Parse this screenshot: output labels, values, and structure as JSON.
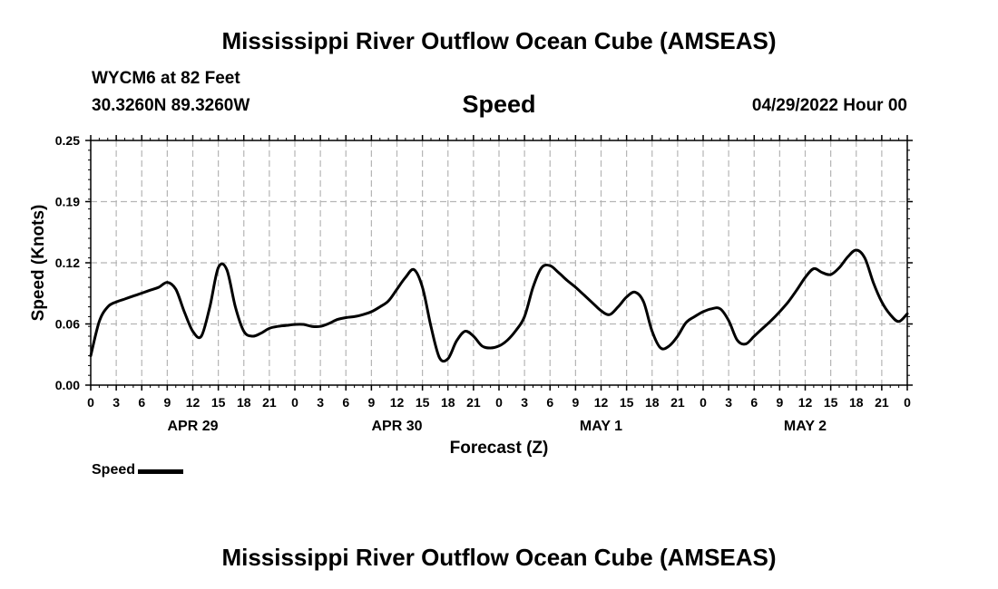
{
  "header": {
    "title": "Mississippi River Outflow Ocean Cube (AMSEAS)",
    "station": "WYCM6 at 82 Feet",
    "coords": "30.3260N  89.3260W",
    "plot_title": "Speed",
    "run_time": "04/29/2022 Hour 00"
  },
  "footer": {
    "title": "Mississippi River Outflow Ocean Cube (AMSEAS)"
  },
  "legend": {
    "label": "Speed",
    "color": "#000000"
  },
  "chart_data": {
    "type": "line",
    "title": "Speed",
    "xlabel": "Forecast (Z)",
    "ylabel": "Speed (Knots)",
    "ylim": [
      0,
      0.25
    ],
    "xlim": [
      0,
      96
    ],
    "yticks": [
      "0.00",
      "0.06",
      "0.12",
      "0.19",
      "0.25"
    ],
    "ytick_values": [
      0,
      0.0625,
      0.125,
      0.1875,
      0.25
    ],
    "xtick_labels": [
      "0",
      "3",
      "6",
      "9",
      "12",
      "15",
      "18",
      "21",
      "0",
      "3",
      "6",
      "9",
      "12",
      "15",
      "18",
      "21",
      "0",
      "3",
      "6",
      "9",
      "12",
      "15",
      "18",
      "21",
      "0",
      "3",
      "6",
      "9",
      "12",
      "15",
      "18",
      "21",
      "0"
    ],
    "day_labels": [
      {
        "label": "APR 29",
        "hour": 12
      },
      {
        "label": "APR 30",
        "hour": 36
      },
      {
        "label": "MAY 1",
        "hour": 60
      },
      {
        "label": "MAY 2",
        "hour": 84
      }
    ],
    "grid": true,
    "series": [
      {
        "name": "Speed",
        "color": "#000000",
        "x": [
          0,
          1,
          2,
          3,
          4,
          5,
          6,
          7,
          8,
          9,
          10,
          11,
          12,
          13,
          14,
          15,
          16,
          17,
          18,
          19,
          20,
          21,
          22,
          23,
          24,
          25,
          26,
          27,
          28,
          29,
          30,
          31,
          32,
          33,
          34,
          35,
          36,
          37,
          38,
          39,
          40,
          41,
          42,
          43,
          44,
          45,
          46,
          47,
          48,
          49,
          50,
          51,
          52,
          53,
          54,
          55,
          56,
          57,
          58,
          59,
          60,
          61,
          62,
          63,
          64,
          65,
          66,
          67,
          68,
          69,
          70,
          71,
          72,
          73,
          74,
          75,
          76,
          77,
          78,
          79,
          80,
          81,
          82,
          83,
          84,
          85,
          86,
          87,
          88,
          89,
          90,
          91,
          92,
          93,
          94,
          95,
          96
        ],
        "values": [
          0.03,
          0.065,
          0.08,
          0.085,
          0.088,
          0.091,
          0.094,
          0.097,
          0.1,
          0.105,
          0.098,
          0.075,
          0.055,
          0.05,
          0.08,
          0.12,
          0.118,
          0.08,
          0.055,
          0.05,
          0.053,
          0.058,
          0.06,
          0.061,
          0.062,
          0.062,
          0.06,
          0.06,
          0.063,
          0.067,
          0.069,
          0.07,
          0.072,
          0.075,
          0.08,
          0.086,
          0.098,
          0.11,
          0.118,
          0.1,
          0.06,
          0.028,
          0.027,
          0.045,
          0.055,
          0.05,
          0.04,
          0.038,
          0.04,
          0.046,
          0.056,
          0.07,
          0.1,
          0.12,
          0.122,
          0.115,
          0.107,
          0.1,
          0.092,
          0.084,
          0.076,
          0.072,
          0.08,
          0.09,
          0.095,
          0.085,
          0.055,
          0.038,
          0.04,
          0.05,
          0.064,
          0.07,
          0.075,
          0.078,
          0.078,
          0.066,
          0.046,
          0.042,
          0.05,
          0.058,
          0.066,
          0.075,
          0.085,
          0.097,
          0.11,
          0.119,
          0.115,
          0.113,
          0.12,
          0.131,
          0.138,
          0.13,
          0.105,
          0.085,
          0.072,
          0.065,
          0.073
        ]
      }
    ]
  }
}
